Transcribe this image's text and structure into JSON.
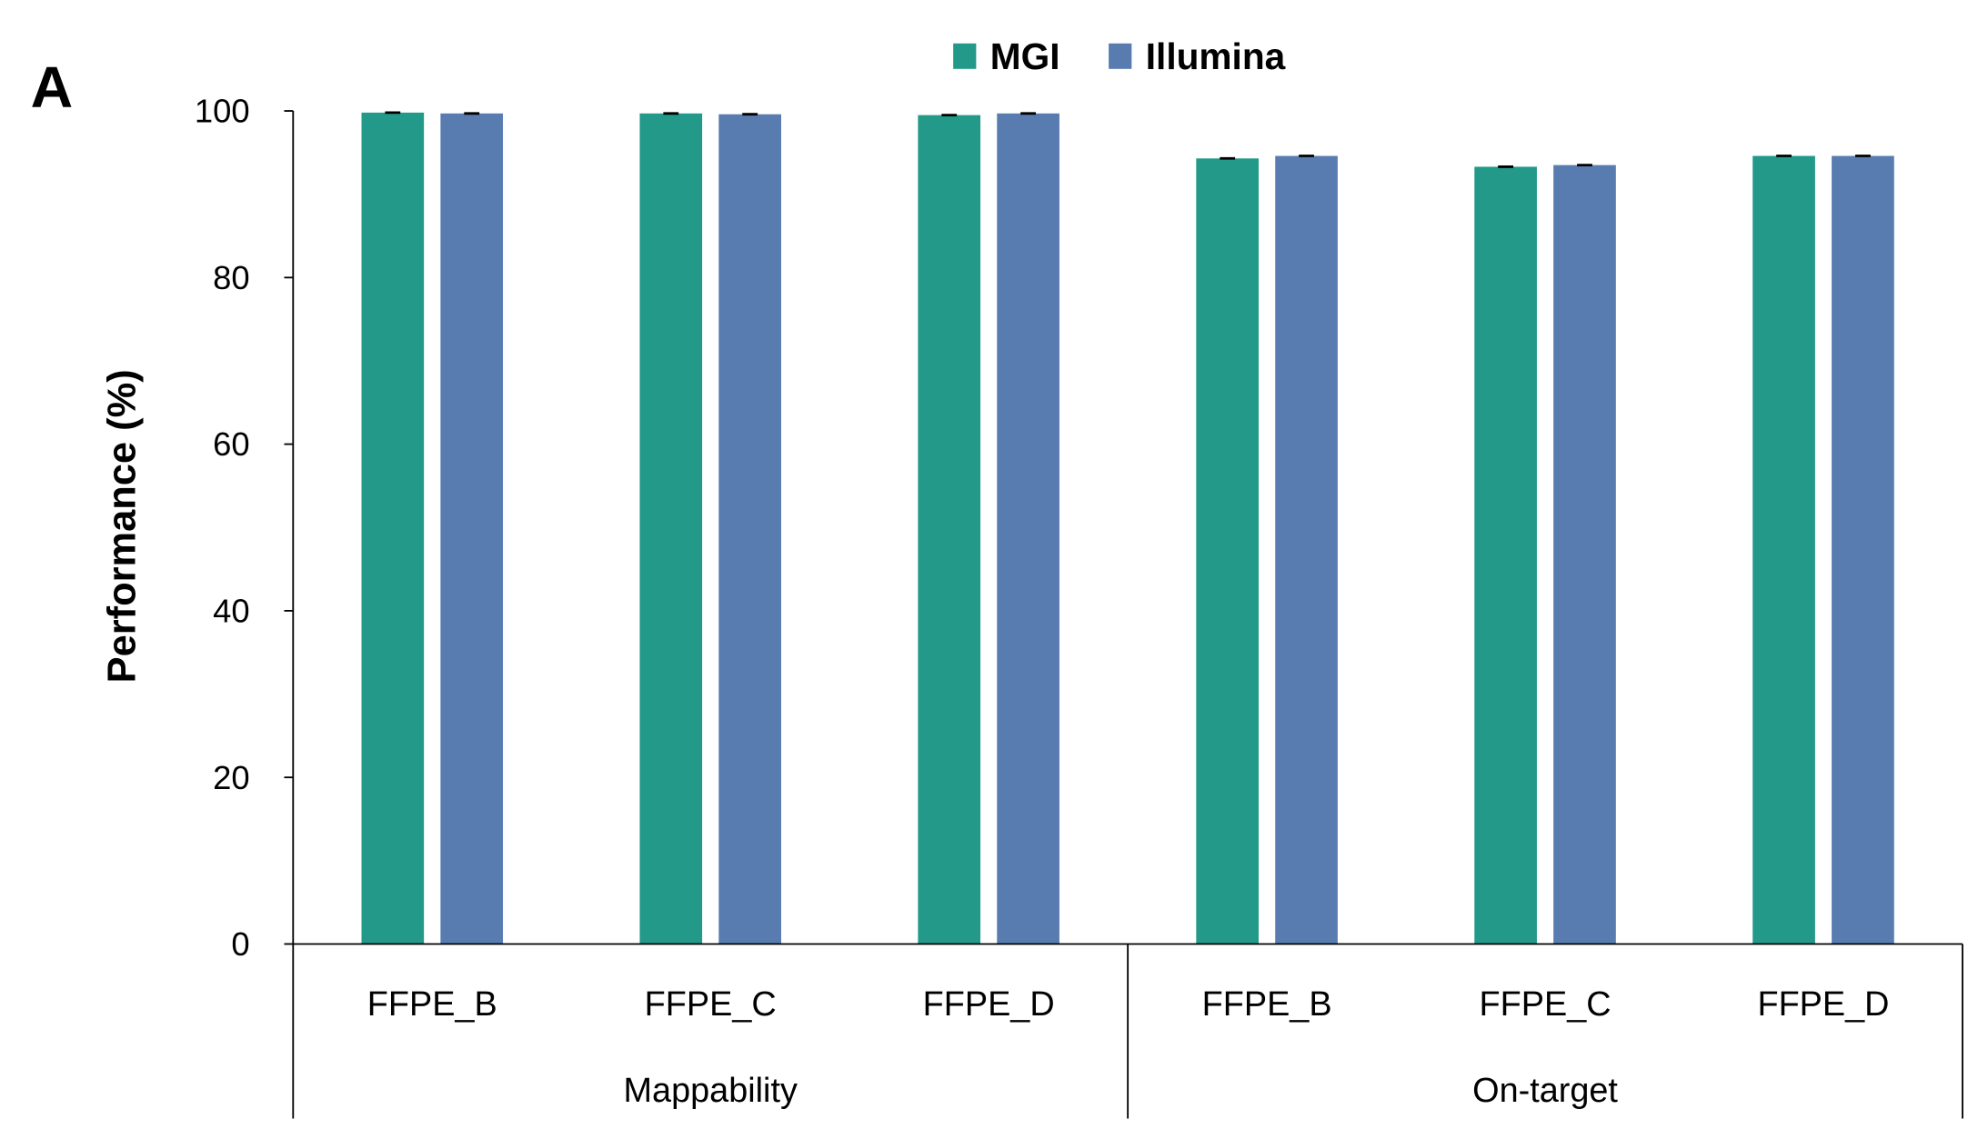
{
  "panel_label": "A",
  "colors": {
    "MGI": "#229989",
    "Illumina": "#587cb0"
  },
  "chart_data": {
    "type": "bar",
    "title": "",
    "xlabel": "",
    "ylabel": "Performance (%)",
    "ylim": [
      0,
      100
    ],
    "yticks": [
      0,
      20,
      40,
      60,
      80,
      100
    ],
    "legend_position": "top-center",
    "groups": [
      "Mappability",
      "On-target"
    ],
    "categories": [
      "FFPE_B",
      "FFPE_C",
      "FFPE_D",
      "FFPE_B",
      "FFPE_C",
      "FFPE_D"
    ],
    "category_group": [
      0,
      0,
      0,
      1,
      1,
      1
    ],
    "series": [
      {
        "name": "MGI",
        "values": [
          99.8,
          99.7,
          99.5,
          94.3,
          93.3,
          94.6
        ]
      },
      {
        "name": "Illumina",
        "values": [
          99.7,
          99.6,
          99.7,
          94.6,
          93.5,
          94.6
        ]
      }
    ],
    "error_bars": true,
    "grid": false
  }
}
